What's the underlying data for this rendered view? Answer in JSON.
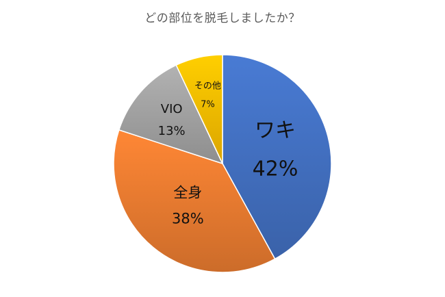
{
  "chart_data": {
    "type": "pie",
    "title": "どの部位を脱毛しましたか？",
    "categories": [
      "ワキ",
      "全身",
      "VIO",
      "その他"
    ],
    "values": [
      42,
      38,
      13,
      7
    ],
    "value_labels": [
      "42%",
      "38%",
      "13%",
      "7%"
    ],
    "colors": [
      "#4472c4",
      "#ed7d31",
      "#a5a5a5",
      "#ffc000"
    ],
    "start_angle_deg": 0,
    "direction": "clockwise",
    "legend": "none",
    "labels_inside_slices": true
  }
}
